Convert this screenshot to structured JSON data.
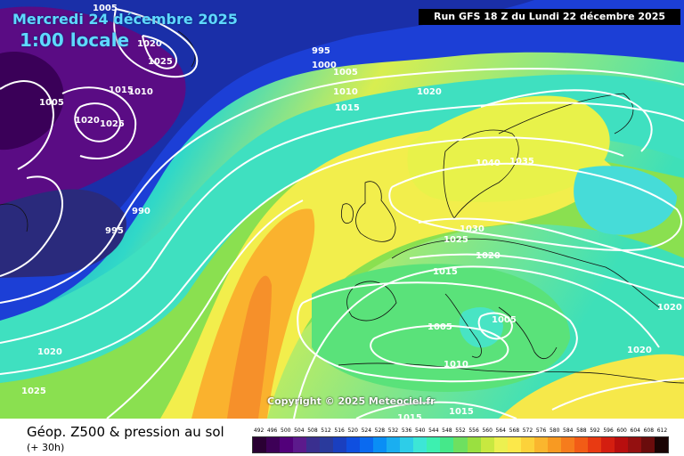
{
  "header": {
    "date": "Mercredi 24 décembre 2025",
    "time": "1:00 locale",
    "run": "Run GFS 18 Z du Lundi 22 décembre 2025"
  },
  "copyright": "Copyright © 2025 Meteociel.fr",
  "footer": {
    "title": "Géop. Z500 & pression au sol",
    "subtitle": "(+ 30h)"
  },
  "legend": {
    "values": [
      "492",
      "496",
      "500",
      "504",
      "508",
      "512",
      "516",
      "520",
      "524",
      "528",
      "532",
      "536",
      "540",
      "544",
      "548",
      "552",
      "556",
      "560",
      "564",
      "568",
      "572",
      "576",
      "580",
      "584",
      "588",
      "592",
      "596",
      "600",
      "604",
      "608",
      "612"
    ],
    "colors": [
      "#2a0033",
      "#3d0057",
      "#52007a",
      "#5c1a8c",
      "#3a2f8f",
      "#2a3a9c",
      "#1a3fbf",
      "#0f4fe0",
      "#0a6af0",
      "#0a8ef5",
      "#1aaef0",
      "#2dcde8",
      "#3de6d6",
      "#3df0b0",
      "#45e88a",
      "#6ee060",
      "#9ae040",
      "#c8e840",
      "#ecf050",
      "#fce84a",
      "#fcd23a",
      "#fab62e",
      "#f89a22",
      "#f67c1c",
      "#f25c16",
      "#e83a12",
      "#d41e10",
      "#b80e0e",
      "#941010",
      "#6a0c0c",
      "#1a0404"
    ]
  },
  "isobars": [
    "1005",
    "1020",
    "1025",
    "995",
    "1000",
    "1005",
    "1010",
    "1015",
    "1020",
    "1005",
    "1015",
    "1010",
    "1020",
    "1025",
    "990",
    "995",
    "1040",
    "1035",
    "1030",
    "1025",
    "1020",
    "1015",
    "1005",
    "1005",
    "1020",
    "1020",
    "1020",
    "1010",
    "1025",
    "1015",
    "1015"
  ]
}
